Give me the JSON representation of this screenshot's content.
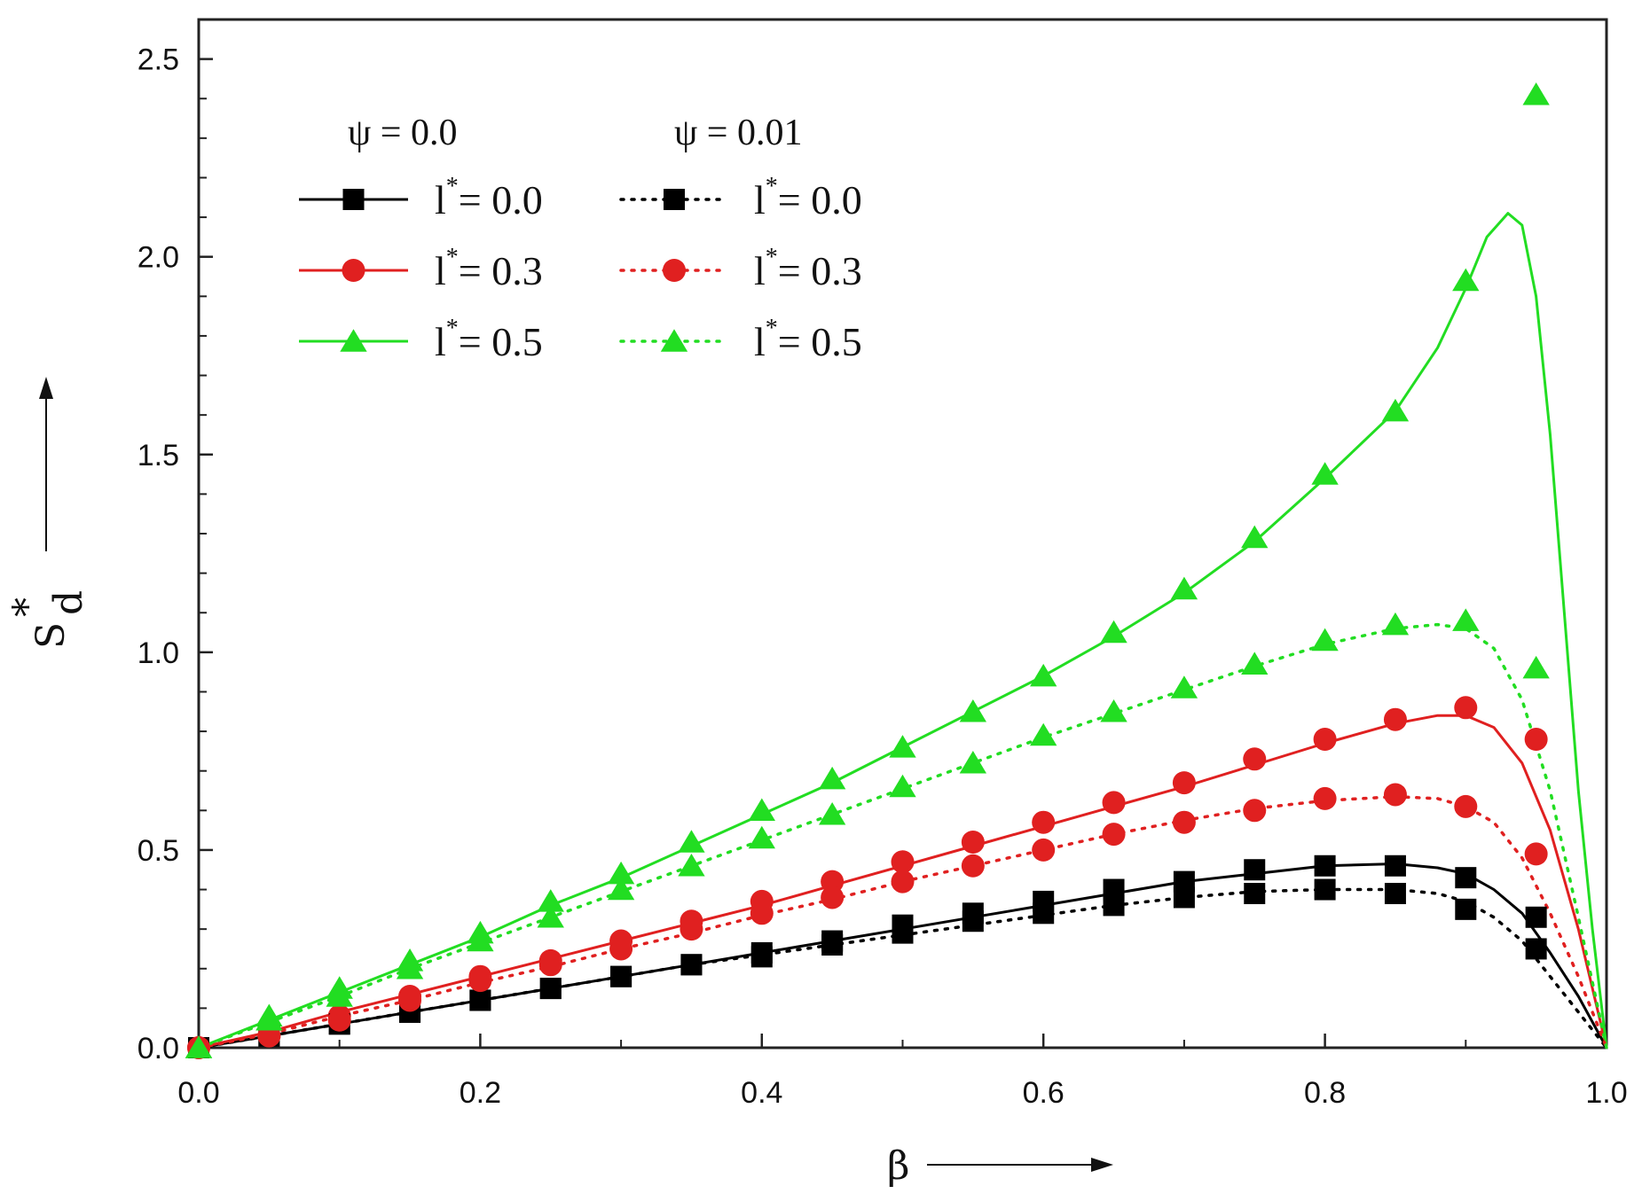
{
  "chart_data": {
    "type": "line",
    "title": "",
    "xlabel": "β",
    "ylabel_main": "S",
    "ylabel_sup": "*",
    "ylabel_sub": "d",
    "xlim": [
      0.0,
      1.0
    ],
    "ylim": [
      0.0,
      2.6
    ],
    "xticks": [
      "0.0",
      "0.2",
      "0.4",
      "0.6",
      "0.8",
      "1.0"
    ],
    "yticks": [
      "0.0",
      "0.5",
      "1.0",
      "1.5",
      "2.0",
      "2.5"
    ],
    "legend": {
      "placement": "top-left",
      "group_headers": [
        "ψ = 0.0",
        "ψ = 0.01"
      ],
      "entries": [
        {
          "label": "l* = 0.0",
          "main": "l",
          "sup": "*",
          "rest": "= 0.0"
        },
        {
          "label": "l* = 0.3",
          "main": "l",
          "sup": "*",
          "rest": "= 0.3"
        },
        {
          "label": "l* = 0.5",
          "main": "l",
          "sup": "*",
          "rest": "= 0.5"
        }
      ]
    },
    "marker_x": [
      0.0,
      0.05,
      0.1,
      0.15,
      0.2,
      0.25,
      0.3,
      0.35,
      0.4,
      0.45,
      0.5,
      0.55,
      0.6,
      0.65,
      0.7,
      0.75,
      0.8,
      0.85,
      0.9,
      0.95
    ],
    "series": [
      {
        "name": "ψ = 0.0, l* = 0.0",
        "psi": "0.0",
        "lstar": "0.0",
        "color": "#000000",
        "marker": "square",
        "style": "solid",
        "values": [
          0.0,
          0.03,
          0.06,
          0.09,
          0.12,
          0.15,
          0.18,
          0.21,
          0.24,
          0.27,
          0.31,
          0.34,
          0.37,
          0.4,
          0.42,
          0.45,
          0.46,
          0.46,
          0.43,
          0.33
        ],
        "curve_x": [
          0.0,
          0.05,
          0.1,
          0.15,
          0.2,
          0.25,
          0.3,
          0.35,
          0.4,
          0.45,
          0.5,
          0.55,
          0.6,
          0.65,
          0.7,
          0.75,
          0.8,
          0.85,
          0.88,
          0.9,
          0.92,
          0.94,
          0.96,
          0.98,
          1.0
        ],
        "curve_y": [
          0.0,
          0.03,
          0.06,
          0.09,
          0.12,
          0.15,
          0.18,
          0.21,
          0.24,
          0.27,
          0.3,
          0.33,
          0.36,
          0.39,
          0.42,
          0.44,
          0.46,
          0.465,
          0.455,
          0.44,
          0.4,
          0.34,
          0.24,
          0.13,
          0.0
        ]
      },
      {
        "name": "ψ = 0.0, l* = 0.3",
        "psi": "0.0",
        "lstar": "0.3",
        "color": "#e02020",
        "marker": "circle",
        "style": "solid",
        "values": [
          0.0,
          0.03,
          0.08,
          0.13,
          0.18,
          0.22,
          0.27,
          0.32,
          0.37,
          0.42,
          0.47,
          0.52,
          0.57,
          0.62,
          0.67,
          0.73,
          0.78,
          0.83,
          0.86,
          0.78
        ],
        "curve_x": [
          0.0,
          0.05,
          0.1,
          0.15,
          0.2,
          0.25,
          0.3,
          0.35,
          0.4,
          0.45,
          0.5,
          0.55,
          0.6,
          0.65,
          0.7,
          0.75,
          0.8,
          0.85,
          0.88,
          0.9,
          0.92,
          0.94,
          0.96,
          0.98,
          1.0
        ],
        "curve_y": [
          0.0,
          0.04,
          0.09,
          0.135,
          0.18,
          0.225,
          0.27,
          0.315,
          0.36,
          0.41,
          0.46,
          0.51,
          0.56,
          0.61,
          0.66,
          0.715,
          0.77,
          0.82,
          0.84,
          0.84,
          0.81,
          0.72,
          0.55,
          0.3,
          0.0
        ]
      },
      {
        "name": "ψ = 0.0, l* = 0.5",
        "psi": "0.0",
        "lstar": "0.5",
        "color": "#22dd22",
        "marker": "triangle",
        "style": "solid",
        "values": [
          0.0,
          0.08,
          0.15,
          0.22,
          0.29,
          0.37,
          0.44,
          0.52,
          0.6,
          0.68,
          0.76,
          0.85,
          0.94,
          1.05,
          1.16,
          1.29,
          1.45,
          1.61,
          1.94,
          2.41
        ],
        "curve_x": [
          0.0,
          0.05,
          0.1,
          0.15,
          0.2,
          0.25,
          0.3,
          0.35,
          0.4,
          0.45,
          0.5,
          0.55,
          0.6,
          0.65,
          0.7,
          0.75,
          0.8,
          0.85,
          0.88,
          0.9,
          0.915,
          0.93,
          0.94,
          0.95,
          0.96,
          0.97,
          0.98,
          0.99,
          1.0
        ],
        "curve_y": [
          0.0,
          0.07,
          0.14,
          0.21,
          0.28,
          0.36,
          0.43,
          0.51,
          0.59,
          0.67,
          0.76,
          0.85,
          0.94,
          1.04,
          1.15,
          1.28,
          1.44,
          1.61,
          1.77,
          1.92,
          2.05,
          2.11,
          2.08,
          1.9,
          1.55,
          1.1,
          0.65,
          0.3,
          0.0
        ]
      },
      {
        "name": "ψ = 0.01, l* = 0.0",
        "psi": "0.01",
        "lstar": "0.0",
        "color": "#000000",
        "marker": "square",
        "style": "dotted",
        "values": [
          0.0,
          0.03,
          0.06,
          0.09,
          0.12,
          0.15,
          0.18,
          0.21,
          0.23,
          0.26,
          0.29,
          0.32,
          0.34,
          0.36,
          0.38,
          0.39,
          0.4,
          0.39,
          0.35,
          0.25
        ],
        "curve_x": [
          0.0,
          0.05,
          0.1,
          0.15,
          0.2,
          0.25,
          0.3,
          0.35,
          0.4,
          0.45,
          0.5,
          0.55,
          0.6,
          0.65,
          0.7,
          0.75,
          0.8,
          0.85,
          0.88,
          0.9,
          0.92,
          0.94,
          0.96,
          0.98,
          1.0
        ],
        "curve_y": [
          0.0,
          0.03,
          0.06,
          0.09,
          0.12,
          0.15,
          0.18,
          0.21,
          0.235,
          0.26,
          0.285,
          0.31,
          0.335,
          0.36,
          0.38,
          0.395,
          0.4,
          0.4,
          0.39,
          0.37,
          0.33,
          0.27,
          0.18,
          0.09,
          0.0
        ]
      },
      {
        "name": "ψ = 0.01, l* = 0.3",
        "psi": "0.01",
        "lstar": "0.3",
        "color": "#e02020",
        "marker": "circle",
        "style": "dotted",
        "values": [
          0.0,
          0.03,
          0.07,
          0.12,
          0.17,
          0.21,
          0.25,
          0.3,
          0.34,
          0.38,
          0.42,
          0.46,
          0.5,
          0.54,
          0.57,
          0.6,
          0.63,
          0.64,
          0.61,
          0.49
        ],
        "curve_x": [
          0.0,
          0.05,
          0.1,
          0.15,
          0.2,
          0.25,
          0.3,
          0.35,
          0.4,
          0.45,
          0.5,
          0.55,
          0.6,
          0.65,
          0.7,
          0.75,
          0.8,
          0.85,
          0.88,
          0.9,
          0.92,
          0.94,
          0.96,
          0.98,
          1.0
        ],
        "curve_y": [
          0.0,
          0.035,
          0.08,
          0.12,
          0.165,
          0.205,
          0.25,
          0.29,
          0.335,
          0.375,
          0.42,
          0.46,
          0.5,
          0.54,
          0.575,
          0.605,
          0.625,
          0.635,
          0.63,
          0.61,
          0.57,
          0.48,
          0.34,
          0.18,
          0.0
        ]
      },
      {
        "name": "ψ = 0.01, l* = 0.5",
        "psi": "0.01",
        "lstar": "0.5",
        "color": "#22dd22",
        "marker": "triangle",
        "style": "dotted",
        "values": [
          0.0,
          0.07,
          0.13,
          0.2,
          0.27,
          0.33,
          0.4,
          0.46,
          0.53,
          0.59,
          0.66,
          0.72,
          0.79,
          0.85,
          0.91,
          0.97,
          1.03,
          1.07,
          1.08,
          0.96
        ],
        "curve_x": [
          0.0,
          0.05,
          0.1,
          0.15,
          0.2,
          0.25,
          0.3,
          0.35,
          0.4,
          0.45,
          0.5,
          0.55,
          0.6,
          0.65,
          0.7,
          0.75,
          0.8,
          0.85,
          0.88,
          0.9,
          0.92,
          0.94,
          0.96,
          0.98,
          1.0
        ],
        "curve_y": [
          0.0,
          0.065,
          0.13,
          0.2,
          0.265,
          0.33,
          0.395,
          0.46,
          0.525,
          0.59,
          0.655,
          0.72,
          0.785,
          0.845,
          0.905,
          0.965,
          1.02,
          1.06,
          1.07,
          1.06,
          1.01,
          0.88,
          0.65,
          0.33,
          0.0
        ]
      }
    ]
  }
}
